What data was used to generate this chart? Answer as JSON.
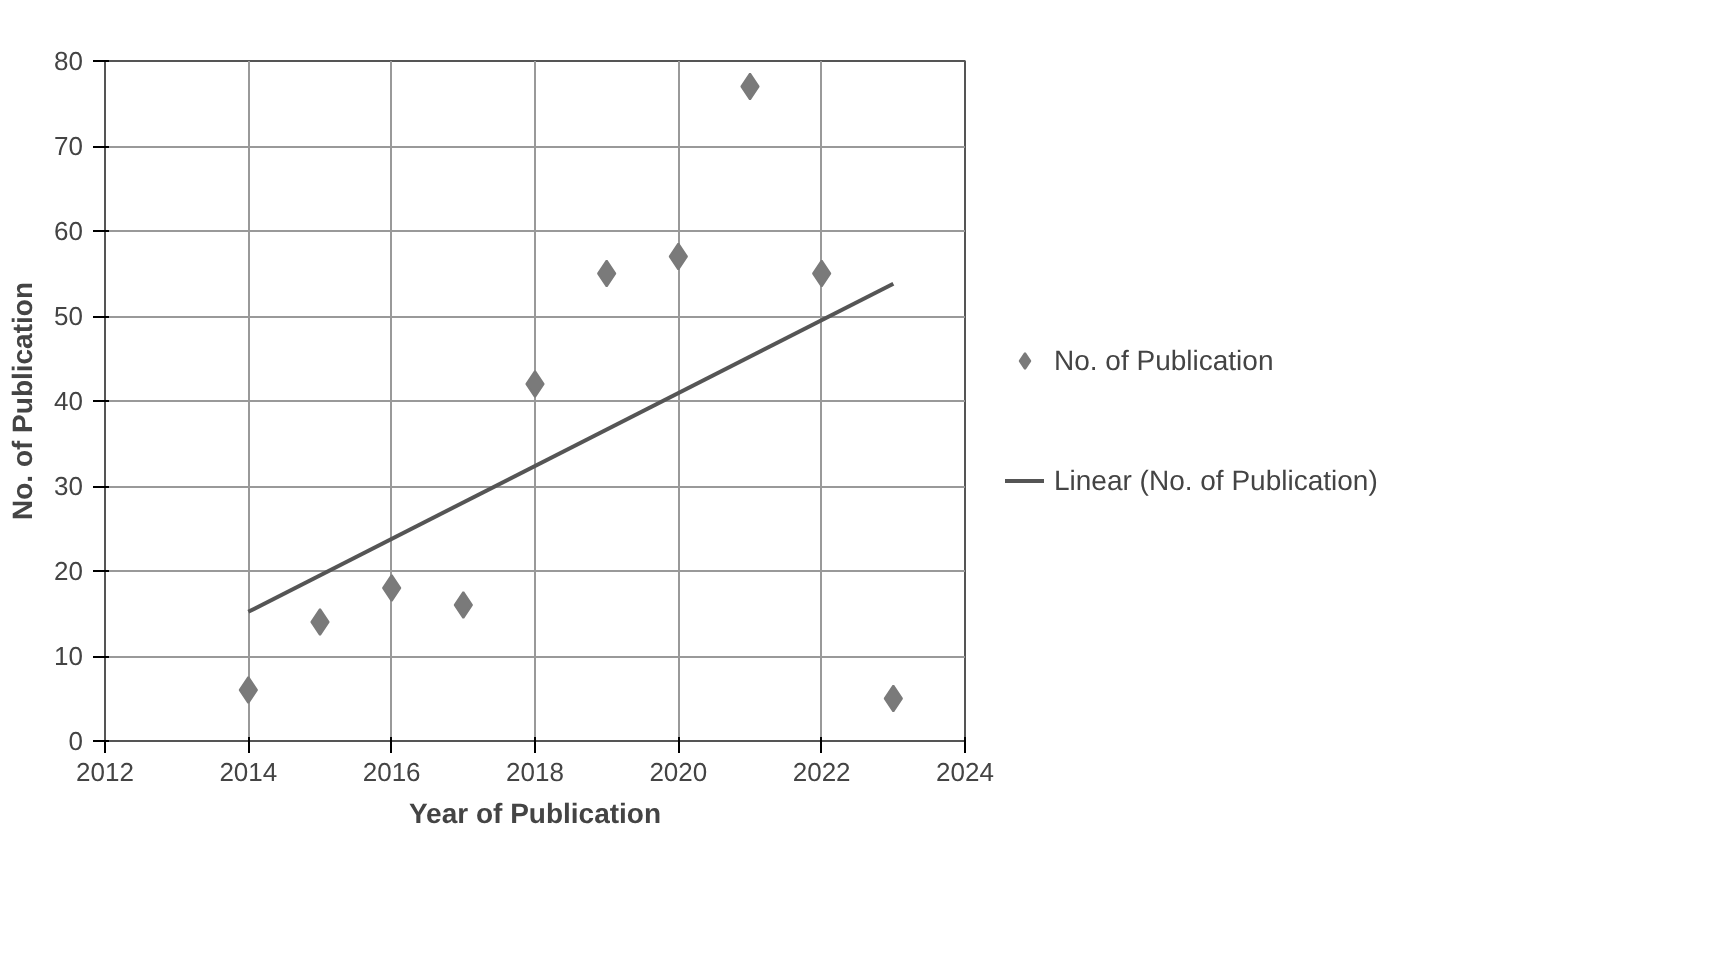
{
  "chart_data": {
    "type": "scatter",
    "xlabel": "Year of Publication",
    "ylabel": "No. of Publication",
    "x": [
      2014,
      2015,
      2016,
      2017,
      2018,
      2019,
      2020,
      2021,
      2022,
      2023
    ],
    "series": [
      {
        "name": "No. of Publication",
        "color": "#7a7a7a",
        "marker": "diamond",
        "values": [
          6,
          14,
          18,
          16,
          42,
          55,
          57,
          77,
          55,
          5
        ]
      },
      {
        "name": "Linear (No. of Publication)",
        "type": "line",
        "color": "#555555",
        "x": [
          2014,
          2023
        ],
        "values": [
          15.2,
          53.8
        ]
      }
    ],
    "xlim": [
      2012,
      2024
    ],
    "xticks": [
      2012,
      2014,
      2016,
      2018,
      2020,
      2022,
      2024
    ],
    "ylim": [
      0,
      80
    ],
    "yticks": [
      0,
      10,
      20,
      30,
      40,
      50,
      60,
      70,
      80
    ],
    "grid": true,
    "legend": "right",
    "line_style": "solid"
  }
}
